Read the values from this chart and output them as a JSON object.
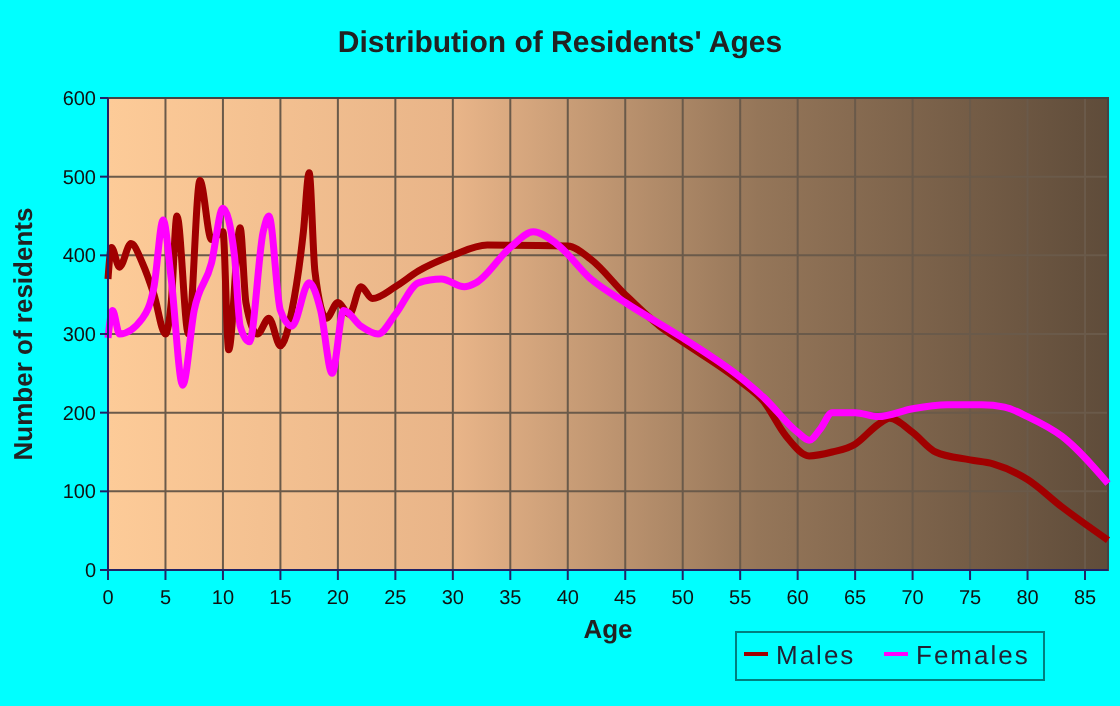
{
  "chart_data": {
    "type": "line",
    "title": "Distribution of Residents' Ages",
    "xlabel": "Age",
    "ylabel": "Number of residents",
    "xlim": [
      0,
      87
    ],
    "xticks": [
      0,
      5,
      10,
      15,
      20,
      25,
      30,
      35,
      40,
      45,
      50,
      55,
      60,
      65,
      70,
      75,
      80,
      85
    ],
    "ylim": [
      0,
      600
    ],
    "yticks": [
      0,
      100,
      200,
      300,
      400,
      500,
      600
    ],
    "grid": true,
    "legend": "bottom",
    "line_style": "solid",
    "marker": "none",
    "series": [
      {
        "name": "Males",
        "color": "#a00000",
        "x": [
          0,
          0.3,
          1,
          2,
          3,
          4,
          5,
          5.5,
          6,
          7,
          8,
          9,
          10,
          10.5,
          11.5,
          12,
          13,
          14,
          15,
          16,
          17,
          17.5,
          18,
          19,
          20,
          21,
          22,
          23,
          25,
          27,
          30,
          33,
          40,
          42,
          45,
          48,
          50,
          55,
          57,
          59,
          61,
          63,
          65,
          67,
          68,
          70,
          72,
          75,
          77,
          80,
          83,
          87
        ],
        "values": [
          370,
          410,
          385,
          415,
          390,
          350,
          300,
          340,
          450,
          300,
          495,
          420,
          430,
          280,
          435,
          340,
          300,
          320,
          285,
          330,
          430,
          505,
          380,
          320,
          340,
          325,
          360,
          345,
          360,
          380,
          400,
          413,
          412,
          395,
          350,
          310,
          290,
          240,
          215,
          170,
          145,
          150,
          160,
          185,
          193,
          175,
          150,
          140,
          135,
          115,
          80,
          38
        ]
      },
      {
        "name": "Females",
        "color": "#ff00ff",
        "x": [
          0,
          0.4,
          1,
          3,
          4,
          4.8,
          5.5,
          6.5,
          7.5,
          9,
          10,
          11,
          11.5,
          12.3,
          13.5,
          14,
          15,
          16,
          17.5,
          18.5,
          19.5,
          20.5,
          22,
          23.5,
          25,
          27,
          29,
          31,
          32,
          35,
          37,
          39,
          42,
          45,
          50,
          55,
          57,
          60,
          61,
          62,
          63,
          65,
          67,
          70,
          73,
          76,
          78,
          80,
          83,
          87
        ],
        "values": [
          295,
          330,
          300,
          320,
          360,
          445,
          370,
          235,
          330,
          390,
          460,
          400,
          310,
          290,
          430,
          450,
          330,
          310,
          365,
          330,
          250,
          330,
          310,
          300,
          325,
          365,
          370,
          360,
          365,
          410,
          430,
          415,
          370,
          340,
          295,
          245,
          220,
          175,
          165,
          180,
          200,
          200,
          195,
          205,
          210,
          210,
          207,
          195,
          170,
          110
        ]
      }
    ]
  }
}
